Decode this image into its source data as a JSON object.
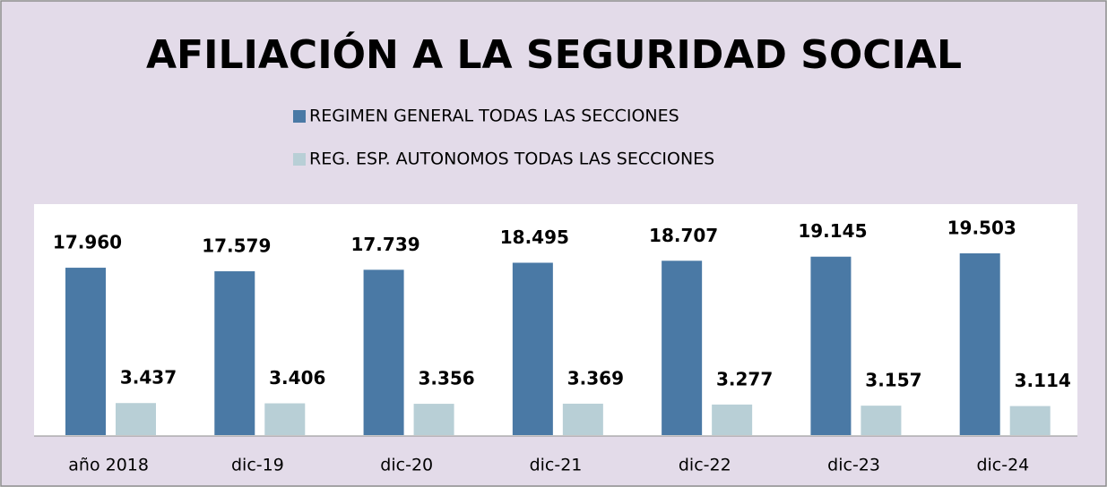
{
  "chart_data": {
    "type": "bar",
    "title": "AFILIACIÓN A LA SEGURIDAD SOCIAL",
    "categories": [
      "año 2018",
      "dic-19",
      "dic-20",
      "dic-21",
      "dic-22",
      "dic-23",
      "dic-24"
    ],
    "series": [
      {
        "name": "REGIMEN GENERAL TODAS LAS SECCIONES",
        "color": "#4a79a5",
        "values": [
          17960,
          17579,
          17739,
          18495,
          18707,
          19145,
          19503
        ],
        "value_labels": [
          "17.960",
          "17.579",
          "17.739",
          "18.495",
          "18.707",
          "19.145",
          "19.503"
        ]
      },
      {
        "name": "REG. ESP. AUTONOMOS TODAS LAS SECCIONES",
        "color": "#b8cfd6",
        "values": [
          3437,
          3406,
          3356,
          3369,
          3277,
          3157,
          3114
        ],
        "value_labels": [
          "3.437",
          "3.406",
          "3.356",
          "3.369",
          "3.277",
          "3.157",
          "3.114"
        ]
      }
    ]
  }
}
